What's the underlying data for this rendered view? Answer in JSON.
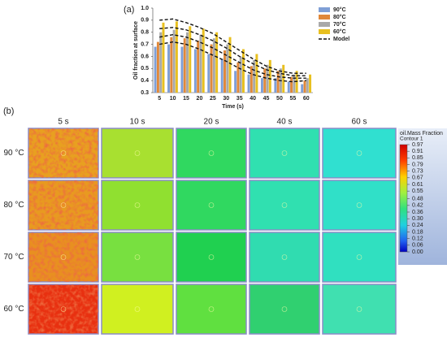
{
  "chart_data": [
    {
      "type": "bar",
      "title": "(a)",
      "y_label": "Oil fraction at surface",
      "x_label": "Time (s)",
      "categories": [
        "5",
        "10",
        "15",
        "20",
        "25",
        "30",
        "35",
        "40",
        "45",
        "50",
        "55",
        "60"
      ],
      "series": [
        {
          "name": "90°C",
          "color": "#7f9fd6",
          "values": [
            0.68,
            0.7,
            0.68,
            0.66,
            0.62,
            0.58,
            0.48,
            0.45,
            0.42,
            0.42,
            0.39,
            0.37
          ]
        },
        {
          "name": "80°C",
          "color": "#e0883a",
          "values": [
            0.72,
            0.76,
            0.75,
            0.73,
            0.7,
            0.65,
            0.55,
            0.52,
            0.5,
            0.48,
            0.43,
            0.4
          ]
        },
        {
          "name": "70°C",
          "color": "#a9a9a9",
          "values": [
            0.8,
            0.82,
            0.8,
            0.78,
            0.75,
            0.7,
            0.6,
            0.57,
            0.53,
            0.5,
            0.45,
            0.42
          ]
        },
        {
          "name": "60°C",
          "color": "#e8c020",
          "values": [
            0.88,
            0.89,
            0.85,
            0.83,
            0.8,
            0.76,
            0.66,
            0.62,
            0.57,
            0.53,
            0.48,
            0.45
          ]
        }
      ],
      "model": {
        "name": "Model",
        "color": "#111111",
        "curves": [
          [
            0.9,
            0.91,
            0.88,
            0.84,
            0.79,
            0.72,
            0.65,
            0.58,
            0.52,
            0.48,
            0.46,
            0.46
          ],
          [
            0.83,
            0.84,
            0.82,
            0.78,
            0.73,
            0.67,
            0.6,
            0.54,
            0.49,
            0.46,
            0.44,
            0.44
          ],
          [
            0.76,
            0.78,
            0.76,
            0.72,
            0.67,
            0.61,
            0.55,
            0.49,
            0.45,
            0.43,
            0.42,
            0.42
          ],
          [
            0.7,
            0.72,
            0.7,
            0.66,
            0.61,
            0.56,
            0.5,
            0.45,
            0.42,
            0.4,
            0.39,
            0.4
          ]
        ]
      },
      "ylim": [
        0.3,
        1.0
      ],
      "yticks": [
        0.3,
        0.4,
        0.5,
        0.6,
        0.7,
        0.8,
        0.9,
        {
          "value": 1.0,
          "label": "1.0"
        }
      ],
      "legend": "upper right"
    },
    {
      "type": "contour-grid",
      "title": "(b)",
      "columns": [
        "5 s",
        "10 s",
        "20 s",
        "40 s",
        "60 s"
      ],
      "rows": [
        "90 °C",
        "80 °C",
        "70 °C",
        "60 °C"
      ],
      "cells": [
        [
          "#e8a020",
          "#a8e030",
          "#30d860",
          "#30e0b0",
          "#30e0d0"
        ],
        [
          "#e89a20",
          "#90e030",
          "#30d860",
          "#30e0b0",
          "#30e0c8"
        ],
        [
          "#e89020",
          "#78e040",
          "#20d050",
          "#30dcb0",
          "#30e0c0"
        ],
        [
          "#e83010",
          "#d0f020",
          "#60e040",
          "#30d070",
          "#40e0b0"
        ]
      ],
      "mottled_column": 0,
      "colorbar": {
        "title": "oil.Mass Fraction",
        "subtitle": "Contour 1",
        "ticks": [
          0.97,
          0.91,
          0.85,
          0.79,
          0.73,
          0.67,
          0.61,
          0.55,
          0.48,
          0.42,
          0.36,
          {
            "value": 0.3,
            "label": "0.30"
          },
          0.24,
          0.18,
          0.12,
          0.06,
          {
            "value": 0,
            "label": "0.00"
          }
        ]
      }
    }
  ]
}
